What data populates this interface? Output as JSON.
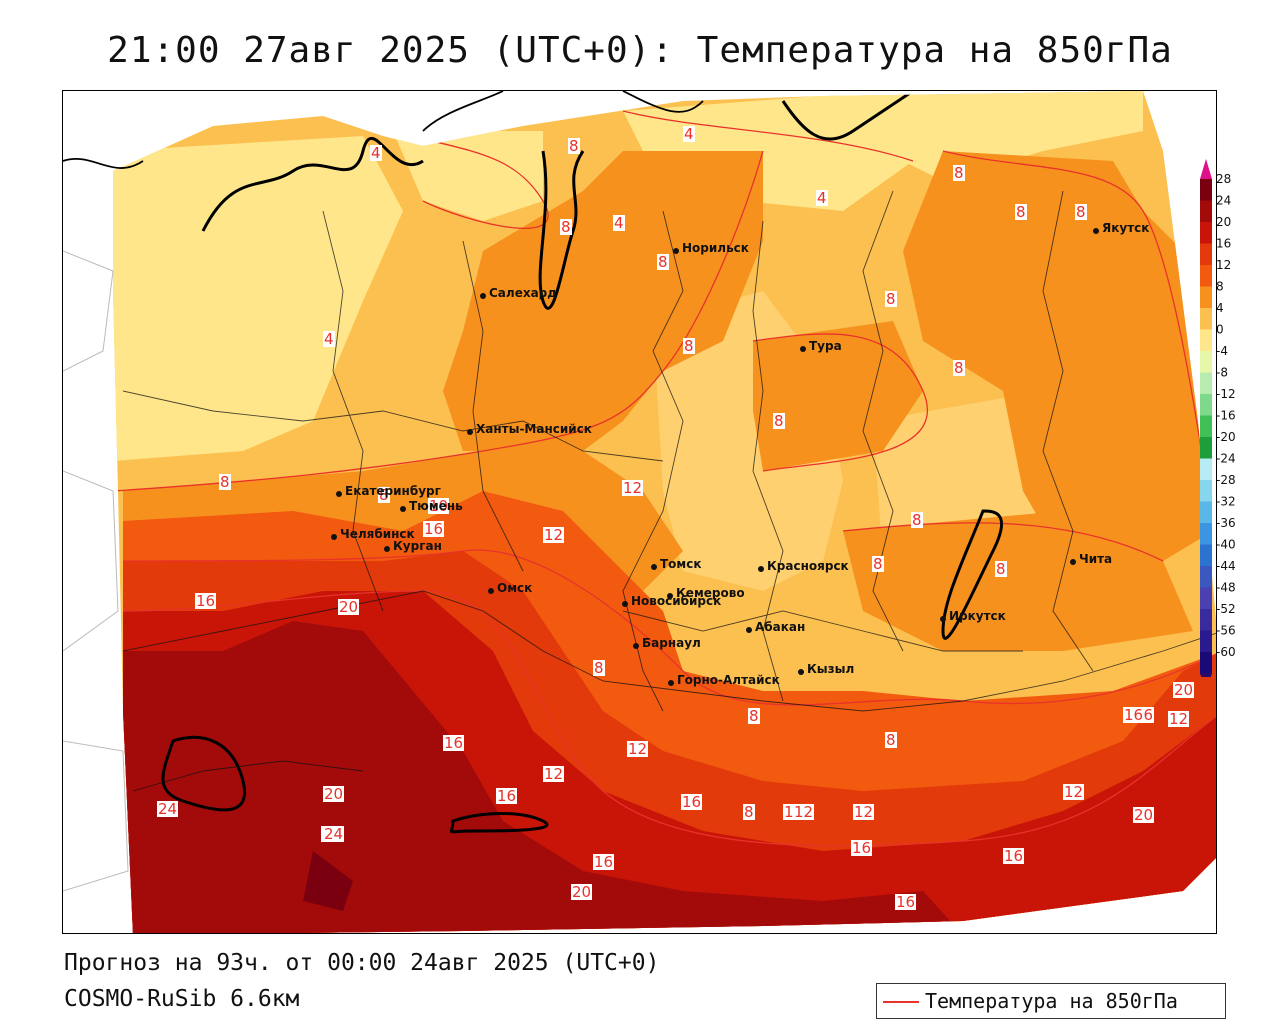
{
  "title": "21:00 27авг 2025 (UTC+0): Температура на 850гПа",
  "footer": {
    "forecast": "Прогноз на 93ч. от 00:00 24авг 2025 (UTC+0)",
    "model": "COSMO-RuSib 6.6км"
  },
  "legend": {
    "label": "Температура на 850гПа",
    "color": "#e8322a"
  },
  "colorbar": {
    "levels": [
      {
        "value": "28",
        "color": "#7a0010"
      },
      {
        "value": "24",
        "color": "#a30a0a"
      },
      {
        "value": "20",
        "color": "#c81508"
      },
      {
        "value": "16",
        "color": "#e23a0a"
      },
      {
        "value": "12",
        "color": "#f25a10"
      },
      {
        "value": "8",
        "color": "#f7911e"
      },
      {
        "value": "4",
        "color": "#fbc050"
      },
      {
        "value": "0",
        "color": "#ffe68a"
      },
      {
        "value": "-4",
        "color": "#e6f7a8"
      },
      {
        "value": "-8",
        "color": "#b8ecae"
      },
      {
        "value": "-12",
        "color": "#7fd98a"
      },
      {
        "value": "-16",
        "color": "#3fbf55"
      },
      {
        "value": "-20",
        "color": "#1e9e3a"
      },
      {
        "value": "-24",
        "color": "#b8ecf4"
      },
      {
        "value": "-28",
        "color": "#88d6ee"
      },
      {
        "value": "-32",
        "color": "#5ab8e8"
      },
      {
        "value": "-36",
        "color": "#3a96e0"
      },
      {
        "value": "-40",
        "color": "#2a74d0"
      },
      {
        "value": "-44",
        "color": "#3a58c0"
      },
      {
        "value": "-48",
        "color": "#4a40b0"
      },
      {
        "value": "-52",
        "color": "#3a2aa0"
      },
      {
        "value": "-56",
        "color": "#2a1a90"
      },
      {
        "value": "-60",
        "color": "#1a0a78"
      }
    ],
    "top_arrow_color": "#e0108a",
    "bottom_arrow_color": "#2a0a6a"
  },
  "cities": [
    {
      "name": "Норильск"
    },
    {
      "name": "Якутск"
    },
    {
      "name": "Салехард"
    },
    {
      "name": "Тура"
    },
    {
      "name": "Ханты-Мансийск"
    },
    {
      "name": "Екатеринбург"
    },
    {
      "name": "Тюмень"
    },
    {
      "name": "Челябинск"
    },
    {
      "name": "Курган"
    },
    {
      "name": "Омск"
    },
    {
      "name": "Новосибирск"
    },
    {
      "name": "Томск"
    },
    {
      "name": "Кемерово"
    },
    {
      "name": "Красноярск"
    },
    {
      "name": "Абакан"
    },
    {
      "name": "Барнаул"
    },
    {
      "name": "Горно-Алтайск"
    },
    {
      "name": "Кызыл"
    },
    {
      "name": "Иркутск"
    },
    {
      "name": "Чита"
    }
  ],
  "contour_labels": [
    "4",
    "8",
    "4",
    "4",
    "4",
    "8",
    "8",
    "8",
    "4",
    "8",
    "8",
    "8",
    "8",
    "8",
    "8",
    "8",
    "10",
    "16",
    "12",
    "8",
    "12",
    "8",
    "20",
    "8",
    "8",
    "16",
    "8",
    "8",
    "16",
    "12",
    "12",
    "16",
    "20",
    "16",
    "24",
    "24",
    "16",
    "12",
    "20",
    "16",
    "8",
    "12",
    "12",
    "16",
    "16",
    "16",
    "20",
    "16",
    "12",
    "20",
    "12",
    "16",
    "8"
  ]
}
